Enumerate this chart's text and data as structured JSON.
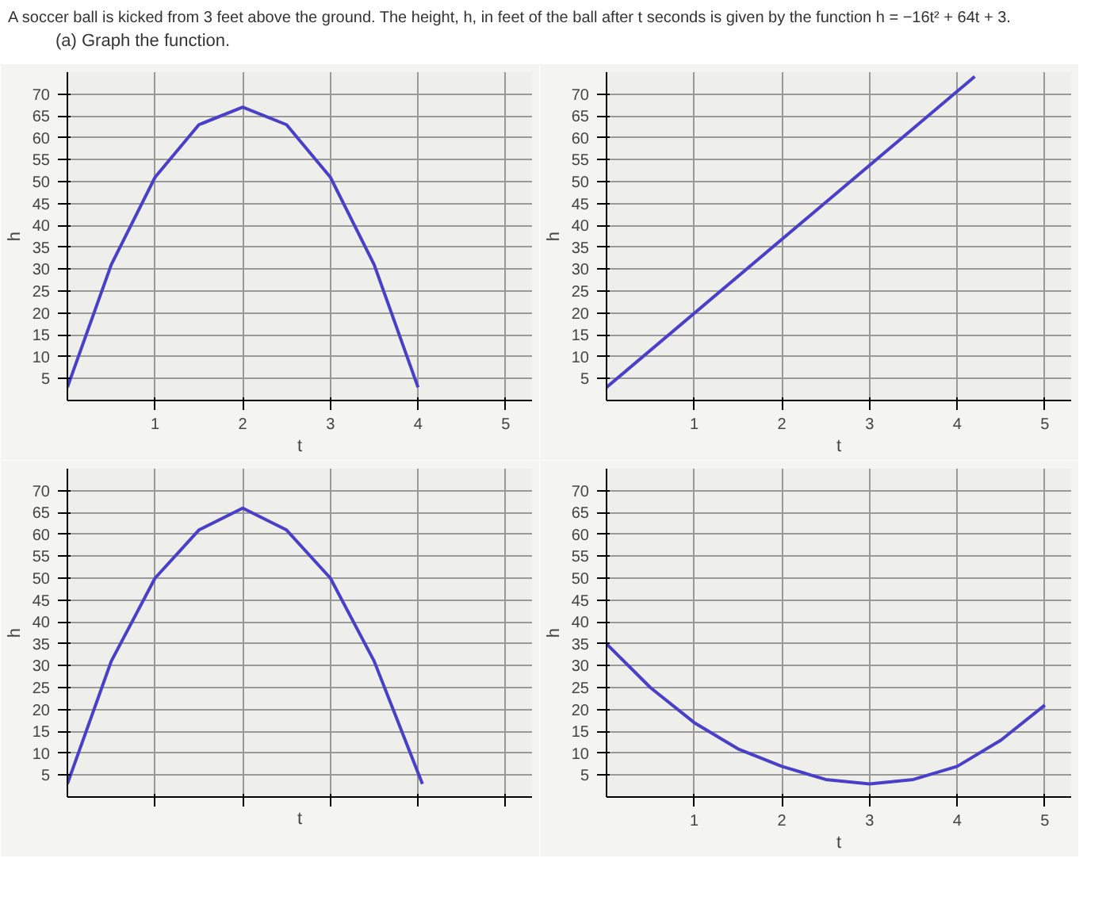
{
  "chart_data": [
    {
      "type": "line",
      "title": "A soccer ball is kicked from 3 feet above the ground. The height, h, in feet of the ball after t seconds is given by the function h = −16t² + 64t + 3.",
      "subtitle": "(a) Graph the function.",
      "xlabel": "t",
      "ylabel": "h",
      "x": [
        0,
        0.5,
        1,
        1.5,
        2,
        2.5,
        3,
        3.5,
        4
      ],
      "series": [
        {
          "color": "#4a3fc8",
          "values": [
            3,
            31,
            51,
            63,
            67,
            63,
            51,
            31,
            3
          ]
        }
      ],
      "xlim": [
        0,
        5.3
      ],
      "ylim": [
        0,
        75
      ],
      "xticks": [
        1,
        2,
        3,
        4,
        5
      ],
      "yticks": [
        5,
        10,
        15,
        20,
        25,
        30,
        35,
        40,
        45,
        50,
        55,
        60,
        65,
        70
      ],
      "grid": true
    },
    {
      "type": "line",
      "xlabel": "t",
      "ylabel": "h",
      "x": [
        0,
        4.2
      ],
      "series": [
        {
          "color": "#4a3fc8",
          "values": [
            3,
            74
          ]
        }
      ],
      "xlim": [
        0,
        5.3
      ],
      "ylim": [
        0,
        75
      ],
      "xticks": [
        1,
        2,
        3,
        4,
        5
      ],
      "yticks": [
        5,
        10,
        15,
        20,
        25,
        30,
        35,
        40,
        45,
        50,
        55,
        60,
        65,
        70
      ],
      "grid": true
    },
    {
      "type": "line",
      "xlabel": "t",
      "ylabel": "h",
      "x": [
        0,
        0.5,
        1,
        1.5,
        2,
        2.5,
        3,
        3.5,
        4.05
      ],
      "series": [
        {
          "color": "#4a3fc8",
          "values": [
            3,
            31,
            50,
            61,
            66,
            61,
            50,
            31,
            3
          ]
        }
      ],
      "xlim": [
        0,
        5.3
      ],
      "ylim": [
        0,
        75
      ],
      "xticks": [
        1,
        2,
        3,
        4,
        5
      ],
      "yticks": [
        5,
        10,
        15,
        20,
        25,
        30,
        35,
        40,
        45,
        50,
        55,
        60,
        65,
        70
      ],
      "grid": true,
      "tick_labels": "y"
    },
    {
      "type": "line",
      "xlabel": "t",
      "ylabel": "h",
      "x": [
        0,
        0.5,
        1,
        1.5,
        2,
        2.5,
        3,
        3.5,
        4,
        4.5,
        5
      ],
      "series": [
        {
          "color": "#4a3fc8",
          "values": [
            35,
            25,
            17,
            11,
            7,
            4,
            3,
            4,
            7,
            13,
            21
          ]
        }
      ],
      "xlim": [
        0,
        5.3
      ],
      "ylim": [
        0,
        75
      ],
      "xticks": [
        1,
        2,
        3,
        4,
        5
      ],
      "yticks": [
        5,
        10,
        15,
        20,
        25,
        30,
        35,
        40,
        45,
        50,
        55,
        60,
        65,
        70
      ],
      "grid": true
    }
  ]
}
